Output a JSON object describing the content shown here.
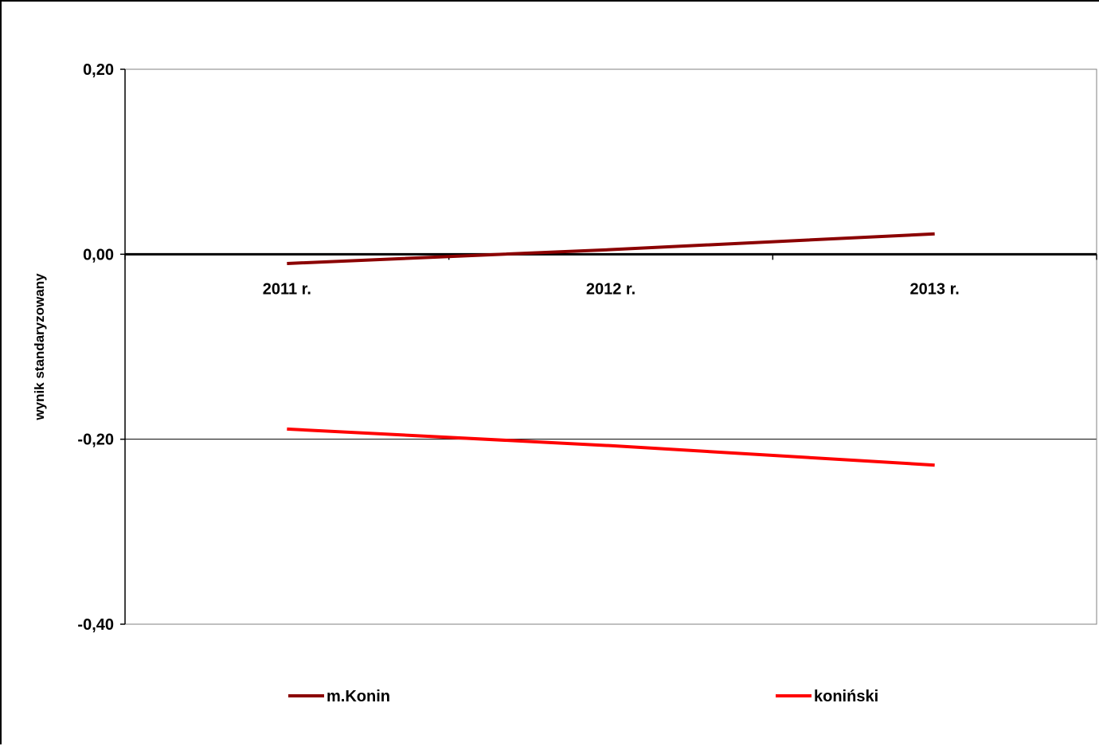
{
  "chart_data": {
    "type": "line",
    "title": "",
    "xlabel": "",
    "ylabel": "wynik standaryzowany",
    "categories": [
      "2011 r.",
      "2012 r.",
      "2013 r."
    ],
    "ylim": [
      -0.4,
      0.2
    ],
    "yticks": [
      0.2,
      0.0,
      -0.2,
      -0.4
    ],
    "ytick_labels": [
      "0,20",
      "0,00",
      "-0,20",
      "-0,40"
    ],
    "grid": "horizontal major",
    "legend_position": "bottom",
    "series": [
      {
        "name": "m.Konin",
        "color": "#8B0000",
        "values": [
          -0.01,
          0.005,
          0.022
        ]
      },
      {
        "name": "koniński",
        "color": "#FF0000",
        "values": [
          -0.189,
          -0.207,
          -0.228
        ]
      }
    ]
  }
}
